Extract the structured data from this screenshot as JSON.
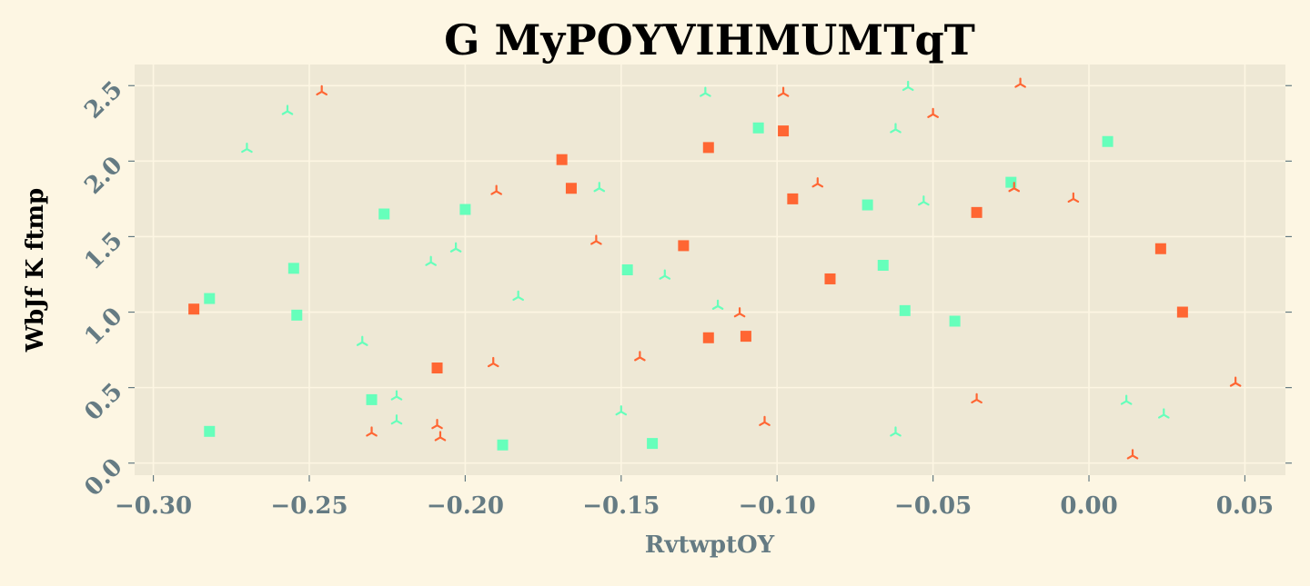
{
  "chart_data": {
    "type": "scatter",
    "title": "G MyPOYVIHMUMTqT",
    "xlabel": "RvtwptOY",
    "ylabel": "WbJf K  ftmp",
    "xlim": [
      -0.306,
      0.063
    ],
    "ylim": [
      -0.08,
      2.64
    ],
    "grid": true,
    "xticks": [
      -0.3,
      -0.25,
      -0.2,
      -0.15,
      -0.1,
      -0.05,
      0.0,
      0.05
    ],
    "xtick_labels": [
      "−0.30",
      "−0.25",
      "−0.20",
      "−0.15",
      "−0.10",
      "−0.05",
      "0.00",
      "0.05"
    ],
    "yticks": [
      0.0,
      0.5,
      1.0,
      1.5,
      2.0,
      2.5
    ],
    "ytick_labels": [
      "0.0",
      "0.5",
      "1.0",
      "1.5",
      "2.0",
      "2.5"
    ],
    "colors": {
      "background": "#fdf6e3",
      "plot_bg": "#eee8d5",
      "grid": "#fdf6e3",
      "tick_text": "#657b83",
      "orange": "#ff6633",
      "green": "#66ffbb"
    },
    "series": [
      {
        "marker": "square",
        "color": "#ff6633",
        "points": [
          [
            -0.287,
            1.02
          ],
          [
            -0.209,
            0.63
          ],
          [
            -0.169,
            2.01
          ],
          [
            -0.166,
            1.82
          ],
          [
            -0.13,
            1.44
          ],
          [
            -0.122,
            2.09
          ],
          [
            -0.122,
            0.83
          ],
          [
            -0.11,
            0.84
          ],
          [
            -0.098,
            2.2
          ],
          [
            -0.095,
            1.75
          ],
          [
            -0.083,
            1.22
          ],
          [
            -0.036,
            1.66
          ],
          [
            0.023,
            1.42
          ],
          [
            0.03,
            1.0
          ]
        ]
      },
      {
        "marker": "square",
        "color": "#66ffbb",
        "points": [
          [
            -0.282,
            1.09
          ],
          [
            -0.282,
            0.21
          ],
          [
            -0.255,
            1.29
          ],
          [
            -0.254,
            0.98
          ],
          [
            -0.23,
            0.42
          ],
          [
            -0.226,
            1.65
          ],
          [
            -0.2,
            1.68
          ],
          [
            -0.188,
            0.12
          ],
          [
            -0.148,
            1.28
          ],
          [
            -0.14,
            0.13
          ],
          [
            -0.106,
            2.22
          ],
          [
            -0.071,
            1.71
          ],
          [
            -0.066,
            1.31
          ],
          [
            -0.059,
            1.01
          ],
          [
            -0.043,
            0.94
          ],
          [
            -0.025,
            1.86
          ],
          [
            0.006,
            2.13
          ]
        ]
      },
      {
        "marker": "tri",
        "color": "#ff6633",
        "points": [
          [
            -0.246,
            2.46
          ],
          [
            -0.23,
            0.2
          ],
          [
            -0.209,
            0.25
          ],
          [
            -0.208,
            0.17
          ],
          [
            -0.19,
            1.8
          ],
          [
            -0.191,
            0.66
          ],
          [
            -0.158,
            1.47
          ],
          [
            -0.144,
            0.7
          ],
          [
            -0.112,
            0.99
          ],
          [
            -0.104,
            0.27
          ],
          [
            -0.098,
            2.45
          ],
          [
            -0.087,
            1.85
          ],
          [
            -0.05,
            2.31
          ],
          [
            -0.036,
            0.42
          ],
          [
            -0.024,
            1.82
          ],
          [
            -0.022,
            2.51
          ],
          [
            -0.005,
            1.75
          ],
          [
            0.014,
            0.05
          ],
          [
            0.047,
            0.53
          ]
        ]
      },
      {
        "marker": "tri",
        "color": "#66ffbb",
        "points": [
          [
            -0.27,
            2.08
          ],
          [
            -0.257,
            2.33
          ],
          [
            -0.233,
            0.8
          ],
          [
            -0.222,
            0.44
          ],
          [
            -0.222,
            0.28
          ],
          [
            -0.211,
            1.33
          ],
          [
            -0.203,
            1.42
          ],
          [
            -0.183,
            1.1
          ],
          [
            -0.157,
            1.82
          ],
          [
            -0.15,
            0.34
          ],
          [
            -0.136,
            1.24
          ],
          [
            -0.123,
            2.45
          ],
          [
            -0.119,
            1.04
          ],
          [
            -0.062,
            2.21
          ],
          [
            -0.062,
            0.2
          ],
          [
            -0.058,
            2.49
          ],
          [
            -0.053,
            1.73
          ],
          [
            0.012,
            0.41
          ],
          [
            0.024,
            0.32
          ]
        ]
      }
    ]
  }
}
